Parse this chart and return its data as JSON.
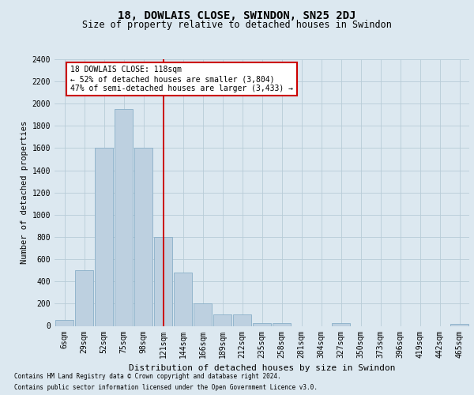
{
  "title": "18, DOWLAIS CLOSE, SWINDON, SN25 2DJ",
  "subtitle": "Size of property relative to detached houses in Swindon",
  "xlabel": "Distribution of detached houses by size in Swindon",
  "ylabel": "Number of detached properties",
  "footer1": "Contains HM Land Registry data © Crown copyright and database right 2024.",
  "footer2": "Contains public sector information licensed under the Open Government Licence v3.0.",
  "annotation_line1": "18 DOWLAIS CLOSE: 118sqm",
  "annotation_line2": "← 52% of detached houses are smaller (3,804)",
  "annotation_line3": "47% of semi-detached houses are larger (3,433) →",
  "bar_color": "#bdd0e0",
  "bar_edge_color": "#8aafc8",
  "vline_color": "#cc0000",
  "background_color": "#dce8f0",
  "grid_color": "#b8ccd8",
  "categories": [
    "6sqm",
    "29sqm",
    "52sqm",
    "75sqm",
    "98sqm",
    "121sqm",
    "144sqm",
    "166sqm",
    "189sqm",
    "212sqm",
    "235sqm",
    "258sqm",
    "281sqm",
    "304sqm",
    "327sqm",
    "350sqm",
    "373sqm",
    "396sqm",
    "419sqm",
    "442sqm",
    "465sqm"
  ],
  "values": [
    50,
    500,
    1600,
    1950,
    1600,
    800,
    480,
    200,
    100,
    100,
    25,
    25,
    0,
    0,
    25,
    0,
    0,
    0,
    0,
    0,
    20
  ],
  "vline_index": 5,
  "ylim": [
    0,
    2400
  ],
  "yticks": [
    0,
    200,
    400,
    600,
    800,
    1000,
    1200,
    1400,
    1600,
    1800,
    2000,
    2200,
    2400
  ],
  "title_fontsize": 10,
  "subtitle_fontsize": 8.5,
  "tick_fontsize": 7,
  "ylabel_fontsize": 7.5,
  "xlabel_fontsize": 8,
  "annotation_fontsize": 7,
  "footer_fontsize": 5.5
}
